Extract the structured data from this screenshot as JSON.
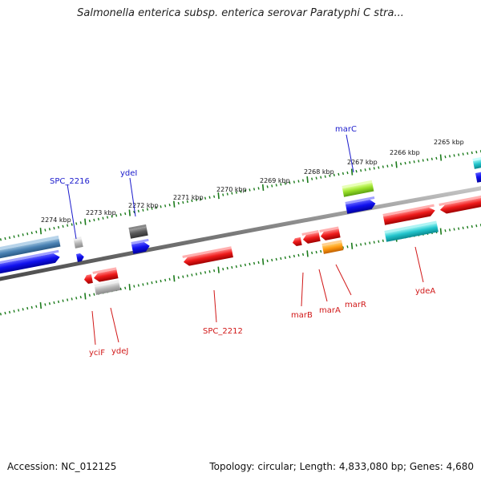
{
  "title": "Salmonella enterica subsp. enterica serovar Paratyphi C stra...",
  "footer": {
    "accession": "Accession: NC_012125",
    "topology": "Topology: circular; Length: 4,833,080 bp; Genes: 4,680"
  },
  "colors": {
    "forward_label": "#1a1acc",
    "reverse_label": "#d11818",
    "tick": "#1a7a1a",
    "backbone": "#8a8a8a"
  },
  "ruler_labels": [
    "2274 kbp",
    "2273 kbp",
    "2272 kbp",
    "2271 kbp",
    "2270 kbp",
    "2269 kbp",
    "2268 kbp",
    "2267 kbp",
    "2266 kbp",
    "2265 kbp"
  ],
  "gene_labels": {
    "forward": [
      "SPC_2216",
      "ydeI",
      "marC"
    ],
    "reverse": [
      "yciF",
      "ydeJ",
      "SPC_2212",
      "marB",
      "marA",
      "marR",
      "ydeA"
    ]
  }
}
